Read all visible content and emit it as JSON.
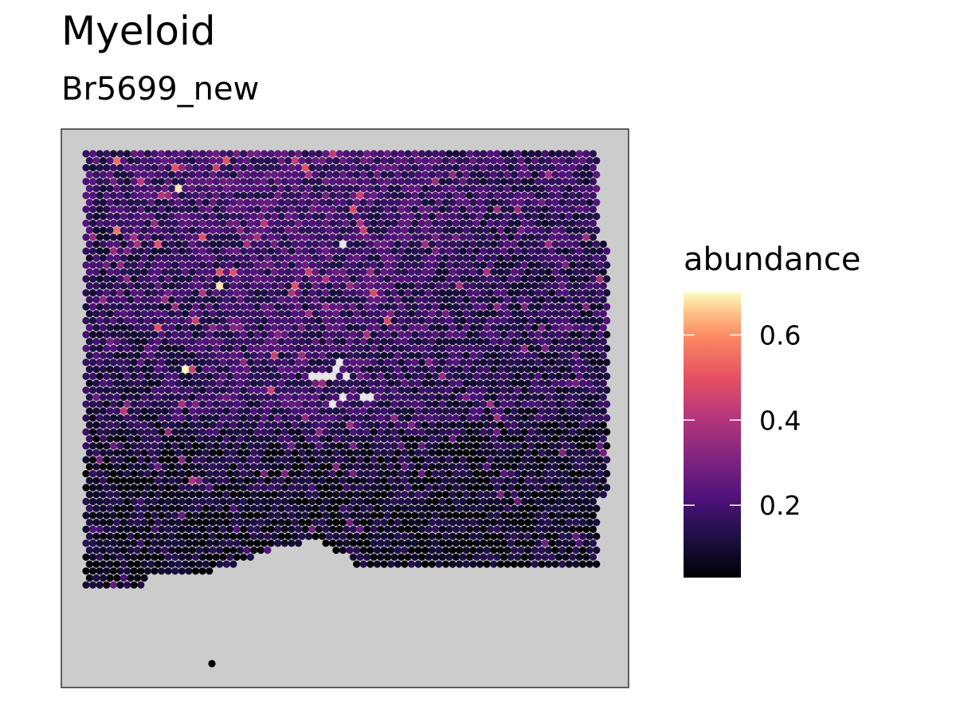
{
  "chart_data": {
    "type": "scatter",
    "title": "Myeloid",
    "subtitle": "Br5699_new",
    "xlabel": "",
    "ylabel": "",
    "grid": false,
    "panel_background": "#cccccc",
    "legend": {
      "title": "abundance",
      "placement": "right",
      "ticks": [
        "0.2",
        "0.4",
        "0.6"
      ],
      "tick_values": [
        0.2,
        0.4,
        0.6
      ],
      "range": [
        0.03,
        0.7
      ],
      "colormap": "magma"
    },
    "hot_spots": [
      {
        "col": 4,
        "row": 1,
        "value": 0.55
      },
      {
        "col": 13,
        "row": 2,
        "value": 0.5
      },
      {
        "col": 19,
        "row": 2,
        "value": 0.45
      },
      {
        "col": 20,
        "row": 1,
        "value": 0.5
      },
      {
        "col": 32,
        "row": 2,
        "value": 0.5
      },
      {
        "col": 8,
        "row": 4,
        "value": 0.42
      },
      {
        "col": 13,
        "row": 5,
        "value": 0.68
      },
      {
        "col": 40,
        "row": 6,
        "value": 0.45
      },
      {
        "col": 4,
        "row": 11,
        "value": 0.55
      },
      {
        "col": 10,
        "row": 13,
        "value": 0.5
      },
      {
        "col": 17,
        "row": 12,
        "value": 0.5
      },
      {
        "col": 26,
        "row": 10,
        "value": 0.42
      },
      {
        "col": 40,
        "row": 11,
        "value": 0.45
      },
      {
        "col": 19,
        "row": 17,
        "value": 0.5
      },
      {
        "col": 19,
        "row": 19,
        "value": 0.68
      },
      {
        "col": 30,
        "row": 19,
        "value": 0.5
      },
      {
        "col": 32,
        "row": 17,
        "value": 0.45
      },
      {
        "col": 42,
        "row": 20,
        "value": 0.48
      },
      {
        "col": 10,
        "row": 25,
        "value": 0.5
      },
      {
        "col": 16,
        "row": 24,
        "value": 0.45
      },
      {
        "col": 14,
        "row": 31,
        "value": 0.7
      },
      {
        "col": 15,
        "row": 31,
        "value": 0.45
      },
      {
        "col": 27,
        "row": 29,
        "value": 0.45
      },
      {
        "col": 27,
        "row": 34,
        "value": 0.45
      },
      {
        "col": 21,
        "row": 17,
        "value": 0.5
      },
      {
        "col": 39,
        "row": 8,
        "value": 0.48
      },
      {
        "col": 44,
        "row": 24,
        "value": 0.48
      },
      {
        "col": 5,
        "row": 37,
        "value": 0.42
      },
      {
        "col": 15,
        "row": 47,
        "value": 0.4
      },
      {
        "col": 12,
        "row": 40,
        "value": 0.35
      }
    ],
    "empty_spots": [
      {
        "col": 37,
        "row": 13
      },
      {
        "col": 37,
        "row": 30
      },
      {
        "col": 36,
        "row": 32
      },
      {
        "col": 35,
        "row": 32
      },
      {
        "col": 36,
        "row": 31
      },
      {
        "col": 33,
        "row": 32
      },
      {
        "col": 34,
        "row": 32
      },
      {
        "col": 38,
        "row": 32
      },
      {
        "col": 40,
        "row": 35
      },
      {
        "col": 41,
        "row": 35
      },
      {
        "col": 36,
        "row": 36
      },
      {
        "col": 37,
        "row": 35
      }
    ],
    "outlier_spot": {
      "value": 0.03
    }
  }
}
